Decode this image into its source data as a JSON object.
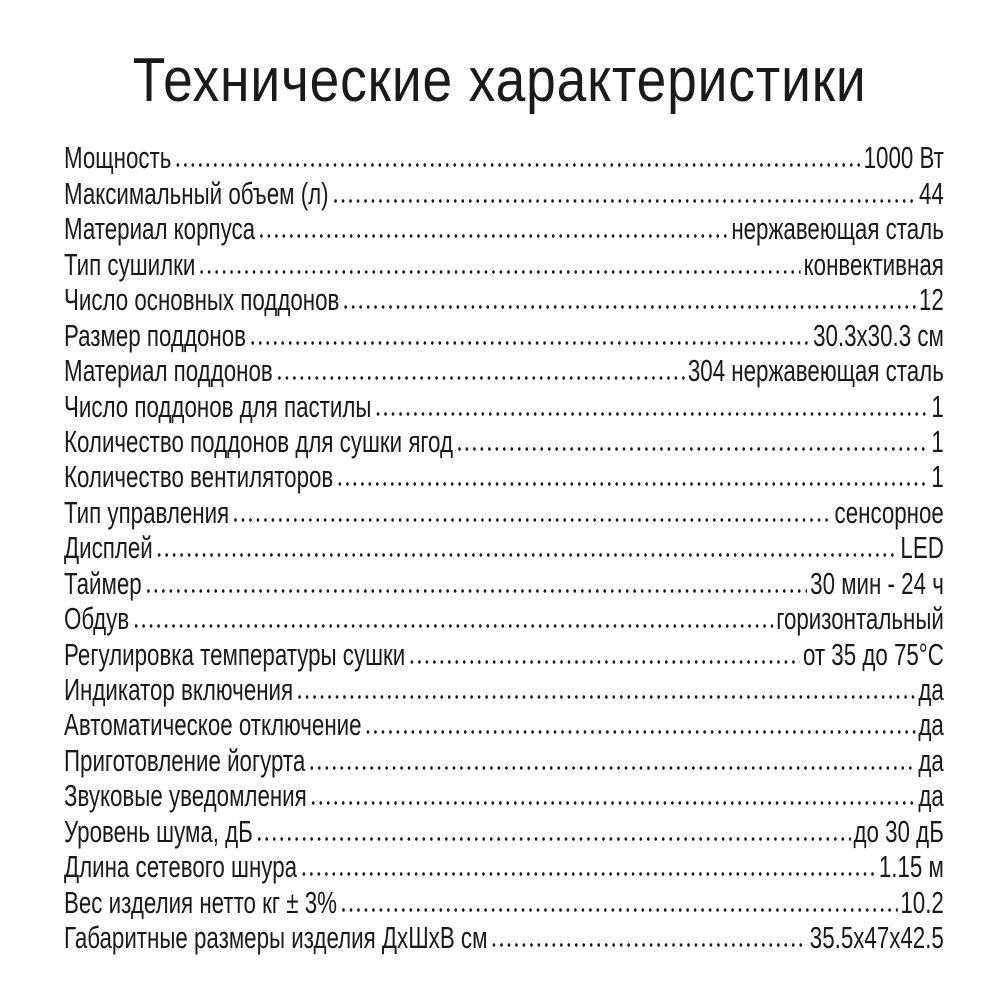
{
  "title": "Технические характеристики",
  "specs": [
    {
      "label": "Мощность",
      "value": "1000 Вт"
    },
    {
      "label": "Максимальный объем (л)",
      "value": "44"
    },
    {
      "label": "Материал корпуса",
      "value": "нержавеющая сталь"
    },
    {
      "label": "Тип сушилки",
      "value": "конвективная"
    },
    {
      "label": "Число основных поддонов",
      "value": "12"
    },
    {
      "label": "Размер поддонов",
      "value": "30.3x30.3 см"
    },
    {
      "label": "Материал поддонов",
      "value": "304 нержавеющая сталь"
    },
    {
      "label": "Число поддонов для пастилы",
      "value": "1"
    },
    {
      "label": "Количество поддонов для сушки ягод",
      "value": "1"
    },
    {
      "label": "Количество вентиляторов",
      "value": "1"
    },
    {
      "label": "Тип управления",
      "value": "сенсорное"
    },
    {
      "label": "Дисплей",
      "value": "LED"
    },
    {
      "label": "Таймер",
      "value": "30 мин - 24 ч"
    },
    {
      "label": "Обдув",
      "value": "горизонтальный"
    },
    {
      "label": "Регулировка температуры сушки",
      "value": "от 35 до 75°С"
    },
    {
      "label": "Индикатор включения",
      "value": "да"
    },
    {
      "label": "Автоматическое отключение",
      "value": "да"
    },
    {
      "label": "Приготовление йогурта",
      "value": "да"
    },
    {
      "label": "Звуковые уведомления",
      "value": "да"
    },
    {
      "label": "Уровень шума, дБ",
      "value": "до 30 дБ"
    },
    {
      "label": "Длина сетевого шнура",
      "value": "1.15 м"
    },
    {
      "label": "Вес изделия нетто кг ± 3%",
      "value": "10.2"
    },
    {
      "label": "Габаритные размеры изделия ДхШхВ см",
      "value": "35.5x47x42.5"
    }
  ]
}
